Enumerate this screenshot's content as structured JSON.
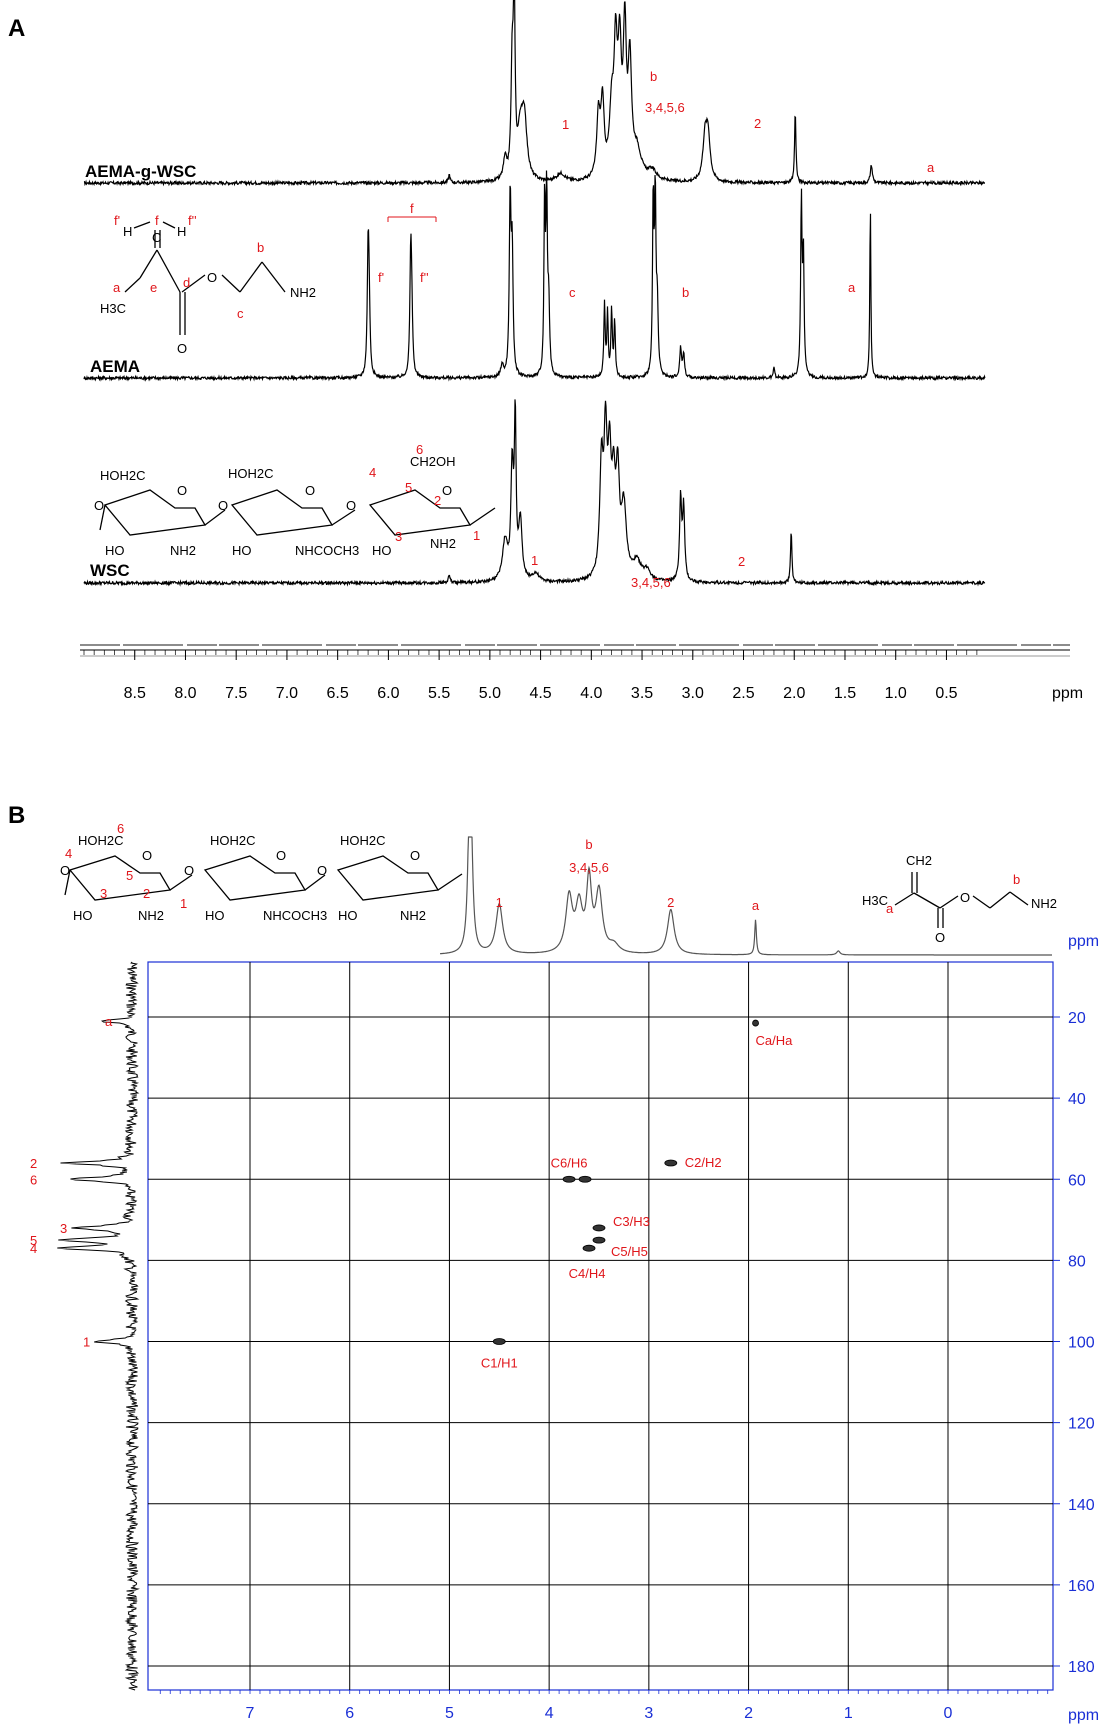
{
  "panels": {
    "a": {
      "letter": "A",
      "traces": [
        {
          "name": "AEMA-g-WSC",
          "baseline": 183,
          "peaks": [
            {
              "x": 5.4,
              "h": 8,
              "w": 0.01
            },
            {
              "x": 4.85,
              "h": 20,
              "w": 0.02
            },
            {
              "x": 4.78,
              "h": 110,
              "w": 0.013
            },
            {
              "x": 4.76,
              "h": 172,
              "w": 0.01
            },
            {
              "x": 4.7,
              "h": 45,
              "w": 0.03
            },
            {
              "x": 4.66,
              "h": 60,
              "w": 0.03
            },
            {
              "x": 4.3,
              "h": 8,
              "w": 0.05
            },
            {
              "x": 3.93,
              "h": 60,
              "w": 0.02
            },
            {
              "x": 3.89,
              "h": 72,
              "w": 0.02
            },
            {
              "x": 3.8,
              "h": 62,
              "w": 0.025
            },
            {
              "x": 3.76,
              "h": 118,
              "w": 0.02
            },
            {
              "x": 3.72,
              "h": 115,
              "w": 0.02
            },
            {
              "x": 3.67,
              "h": 140,
              "w": 0.018
            },
            {
              "x": 3.62,
              "h": 110,
              "w": 0.02
            },
            {
              "x": 3.55,
              "h": 28,
              "w": 0.05
            },
            {
              "x": 3.4,
              "h": 10,
              "w": 0.05
            },
            {
              "x": 2.88,
              "h": 40,
              "w": 0.025
            },
            {
              "x": 2.85,
              "h": 44,
              "w": 0.025
            },
            {
              "x": 1.99,
              "h": 72,
              "w": 0.008
            },
            {
              "x": 1.24,
              "h": 18,
              "w": 0.012
            }
          ]
        },
        {
          "name": "AEMA",
          "baseline": 378,
          "peaks": [
            {
              "x": 6.2,
              "h": 120,
              "w": 0.01
            },
            {
              "x": 6.19,
              "h": 60,
              "w": 0.01
            },
            {
              "x": 5.78,
              "h": 115,
              "w": 0.01
            },
            {
              "x": 5.77,
              "h": 55,
              "w": 0.01
            },
            {
              "x": 4.88,
              "h": 12,
              "w": 0.015
            },
            {
              "x": 4.8,
              "h": 175,
              "w": 0.01
            },
            {
              "x": 4.78,
              "h": 120,
              "w": 0.01
            },
            {
              "x": 4.46,
              "h": 175,
              "w": 0.008
            },
            {
              "x": 4.44,
              "h": 175,
              "w": 0.008
            },
            {
              "x": 4.42,
              "h": 70,
              "w": 0.01
            },
            {
              "x": 3.87,
              "h": 72,
              "w": 0.008
            },
            {
              "x": 3.84,
              "h": 62,
              "w": 0.008
            },
            {
              "x": 3.8,
              "h": 66,
              "w": 0.008
            },
            {
              "x": 3.77,
              "h": 55,
              "w": 0.008
            },
            {
              "x": 3.39,
              "h": 175,
              "w": 0.008
            },
            {
              "x": 3.37,
              "h": 175,
              "w": 0.008
            },
            {
              "x": 3.35,
              "h": 70,
              "w": 0.01
            },
            {
              "x": 3.12,
              "h": 30,
              "w": 0.01
            },
            {
              "x": 3.09,
              "h": 24,
              "w": 0.01
            },
            {
              "x": 2.2,
              "h": 10,
              "w": 0.008
            },
            {
              "x": 1.93,
              "h": 175,
              "w": 0.008
            },
            {
              "x": 1.91,
              "h": 120,
              "w": 0.008
            },
            {
              "x": 1.25,
              "h": 175,
              "w": 0.006
            }
          ]
        },
        {
          "name": "WSC",
          "baseline": 583,
          "peaks": [
            {
              "x": 5.4,
              "h": 8,
              "w": 0.01
            },
            {
              "x": 4.85,
              "h": 40,
              "w": 0.03
            },
            {
              "x": 4.78,
              "h": 110,
              "w": 0.015
            },
            {
              "x": 4.75,
              "h": 155,
              "w": 0.01
            },
            {
              "x": 4.7,
              "h": 60,
              "w": 0.02
            },
            {
              "x": 4.55,
              "h": 8,
              "w": 0.04
            },
            {
              "x": 3.9,
              "h": 110,
              "w": 0.02
            },
            {
              "x": 3.86,
              "h": 130,
              "w": 0.018
            },
            {
              "x": 3.82,
              "h": 108,
              "w": 0.02
            },
            {
              "x": 3.78,
              "h": 80,
              "w": 0.02
            },
            {
              "x": 3.74,
              "h": 95,
              "w": 0.02
            },
            {
              "x": 3.68,
              "h": 70,
              "w": 0.03
            },
            {
              "x": 3.55,
              "h": 18,
              "w": 0.05
            },
            {
              "x": 3.45,
              "h": 10,
              "w": 0.04
            },
            {
              "x": 3.12,
              "h": 82,
              "w": 0.012
            },
            {
              "x": 3.09,
              "h": 72,
              "w": 0.012
            },
            {
              "x": 2.03,
              "h": 52,
              "w": 0.008
            }
          ]
        }
      ],
      "axis": {
        "ticks": [
          "8.5",
          "8.0",
          "7.5",
          "7.0",
          "6.5",
          "6.0",
          "5.5",
          "5.0",
          "4.5",
          "4.0",
          "3.5",
          "3.0",
          "2.5",
          "2.0",
          "1.5",
          "1.0",
          "0.5"
        ],
        "unit": "ppm"
      },
      "annotations": [
        {
          "text": "1"
        },
        {
          "text": "b"
        },
        {
          "text": "3,4,5,6"
        },
        {
          "text": "2"
        },
        {
          "text": "a"
        },
        {
          "text": "f"
        },
        {
          "text": "f'"
        },
        {
          "text": "f''"
        },
        {
          "text": "c"
        },
        {
          "text": "b"
        },
        {
          "text": "a"
        },
        {
          "text": "1"
        },
        {
          "text": "3,4,5,6"
        },
        {
          "text": "2"
        }
      ]
    },
    "b": {
      "letter": "B",
      "x_ticks": [
        "7",
        "6",
        "5",
        "4",
        "3",
        "2",
        "1",
        "0"
      ],
      "y_ticks": [
        "20",
        "40",
        "60",
        "80",
        "100",
        "120",
        "140",
        "160",
        "180"
      ],
      "x_unit": "ppm",
      "y_unit": "ppm",
      "projection_labels": [
        {
          "text": "1"
        },
        {
          "text": "b"
        },
        {
          "text": "3,4,5,6"
        },
        {
          "text": "2"
        },
        {
          "text": "a"
        }
      ],
      "carbon_labels": [
        {
          "text": "a",
          "c": 21
        },
        {
          "text": "2",
          "c": 56
        },
        {
          "text": "6",
          "c": 60
        },
        {
          "text": "3",
          "c": 72
        },
        {
          "text": "5",
          "c": 75
        },
        {
          "text": "4",
          "c": 77
        },
        {
          "text": "1",
          "c": 100
        }
      ],
      "cross_peaks": [
        {
          "label": "Ca/Ha",
          "h": 1.93,
          "c": 21.5
        },
        {
          "label": "C2/H2",
          "h": 2.78,
          "c": 56
        },
        {
          "label": "C6/H6",
          "h": 3.72,
          "c": 60
        },
        {
          "label": "C3/H3",
          "h": 3.5,
          "c": 72
        },
        {
          "label": "C5/H5",
          "h": 3.5,
          "c": 75
        },
        {
          "label": "C4/H4",
          "h": 3.6,
          "c": 77
        },
        {
          "label": "C1/H1",
          "h": 4.5,
          "c": 100
        }
      ]
    }
  },
  "structures": {
    "aema_labels": [
      "f'",
      "f",
      "f''",
      "H",
      "C",
      "H",
      "a",
      "e",
      "d",
      "c",
      "b",
      "H3C",
      "O",
      "O",
      "NH2"
    ],
    "wsc_text": [
      "HOH2C",
      "HOH2C",
      "CH2OH",
      "O",
      "O",
      "O",
      "O",
      "O",
      "O",
      "HO",
      "HO",
      "HO",
      "NH2",
      "NH2",
      "NHCOCH3"
    ],
    "wsc_numbers": [
      "6",
      "4",
      "5",
      "2",
      "3",
      "1"
    ],
    "aema_b_text": [
      "CH2",
      "H3C",
      "O",
      "O",
      "NH2"
    ],
    "aema_b_labels": [
      "a",
      "b"
    ]
  },
  "colors": {
    "annotation": "#e0161b",
    "axis2d": "#1a2fd6",
    "trace": "#000000"
  }
}
